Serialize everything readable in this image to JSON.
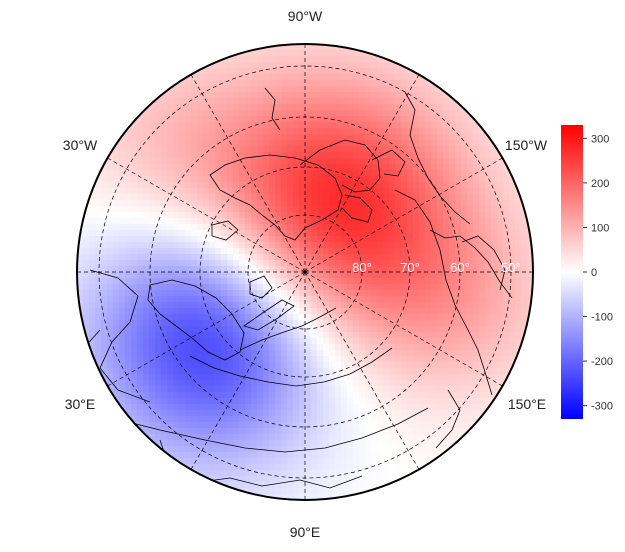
{
  "map": {
    "projection": "north polar stereographic",
    "longitude_labels": [
      {
        "label": "90°W",
        "lon": -90
      },
      {
        "label": "30°W",
        "lon": -30
      },
      {
        "label": "150°W",
        "lon": -150
      },
      {
        "label": "30°E",
        "lon": 30
      },
      {
        "label": "150°E",
        "lon": 150
      },
      {
        "label": "90°E",
        "lon": 90
      }
    ],
    "latitude_labels": [
      "80°",
      "70°",
      "60°",
      "50°"
    ],
    "colorbar": {
      "min": -330,
      "max": 330,
      "ticks": [
        300,
        200,
        100,
        0,
        -100,
        -200,
        -300
      ],
      "colors": {
        "low": "#0000ff",
        "mid": "#ffffff",
        "high": "#ff0000"
      }
    },
    "colors": {
      "coastline": "#000000",
      "grid": "#000000",
      "outline": "#000000"
    }
  }
}
